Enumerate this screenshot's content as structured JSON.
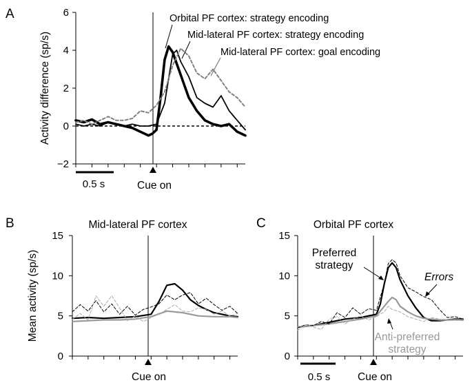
{
  "chart_data": [
    {
      "panel_label": "A",
      "type": "line",
      "ylabel": "Activity difference (sp/s)",
      "ylim": [
        -2,
        6
      ],
      "yticks": [
        "−2",
        "0",
        "2",
        "4",
        "6"
      ],
      "xlim": [
        -1.0,
        1.1
      ],
      "cue_label": "Cue on",
      "scalebar_label": "0.5 s",
      "series": [
        {
          "name": "Orbital PF cortex: strategy encoding",
          "color": "#000000",
          "x": [
            -1.0,
            -0.9,
            -0.8,
            -0.7,
            -0.6,
            -0.5,
            -0.4,
            -0.3,
            -0.2,
            -0.1,
            -0.05,
            0.0,
            0.05,
            0.1,
            0.15,
            0.2,
            0.25,
            0.3,
            0.35,
            0.4,
            0.5,
            0.6,
            0.7,
            0.8,
            0.9,
            1.0,
            1.1
          ],
          "values": [
            0.3,
            0.2,
            0.35,
            0.1,
            0.2,
            0.1,
            0.0,
            -0.1,
            -0.3,
            -0.5,
            -0.4,
            -0.2,
            1.5,
            3.5,
            4.2,
            3.9,
            3.3,
            2.7,
            2.1,
            1.5,
            0.8,
            0.3,
            0.1,
            0.0,
            0.1,
            -0.3,
            -0.5
          ]
        },
        {
          "name": "Mid-lateral PF cortex: strategy encoding",
          "color": "#000000",
          "x": [
            -1.0,
            -0.9,
            -0.8,
            -0.7,
            -0.6,
            -0.5,
            -0.4,
            -0.3,
            -0.2,
            -0.1,
            0.0,
            0.1,
            0.15,
            0.2,
            0.25,
            0.3,
            0.4,
            0.5,
            0.6,
            0.7,
            0.8,
            0.9,
            1.0,
            1.1
          ],
          "values": [
            0.1,
            0.0,
            0.1,
            0.0,
            0.2,
            0.1,
            0.0,
            0.1,
            0.0,
            0.0,
            0.1,
            1.2,
            2.5,
            3.8,
            4.0,
            3.4,
            2.6,
            1.5,
            1.2,
            1.0,
            1.6,
            0.8,
            0.3,
            -0.2
          ]
        },
        {
          "name": "Mid-lateral PF cortex: goal encoding",
          "color": "#808080",
          "x": [
            -1.0,
            -0.9,
            -0.8,
            -0.7,
            -0.6,
            -0.5,
            -0.4,
            -0.3,
            -0.2,
            -0.1,
            0.0,
            0.1,
            0.2,
            0.3,
            0.4,
            0.5,
            0.6,
            0.7,
            0.8,
            0.9,
            1.0,
            1.1
          ],
          "values": [
            0.2,
            0.3,
            0.1,
            0.3,
            0.5,
            0.3,
            0.3,
            0.4,
            0.8,
            0.7,
            1.1,
            1.8,
            3.2,
            4.1,
            3.7,
            2.8,
            2.5,
            3.0,
            2.4,
            1.8,
            1.5,
            1.0
          ]
        }
      ]
    },
    {
      "panel_label": "B",
      "type": "line",
      "title": "Mid-lateral PF cortex",
      "ylabel": "Mean activity (sp/s)",
      "ylim": [
        0,
        15
      ],
      "yticks": [
        "0",
        "5",
        "10",
        "15"
      ],
      "xlim": [
        -1.0,
        1.1
      ],
      "cue_label": "Cue on",
      "series": [
        {
          "color": "#000000",
          "width": 2.2,
          "x": [
            -1.0,
            -0.8,
            -0.6,
            -0.4,
            -0.2,
            0.0,
            0.1,
            0.2,
            0.3,
            0.4,
            0.5,
            0.6,
            0.7,
            0.8,
            0.9,
            1.0,
            1.1
          ],
          "values": [
            4.7,
            4.8,
            4.7,
            4.8,
            4.9,
            5.2,
            6.8,
            8.8,
            9.0,
            8.2,
            7.0,
            6.3,
            5.8,
            5.4,
            5.2,
            5.0,
            4.9
          ]
        },
        {
          "color": "#999999",
          "width": 2.2,
          "x": [
            -1.0,
            -0.8,
            -0.6,
            -0.4,
            -0.2,
            0.0,
            0.2,
            0.4,
            0.6,
            0.8,
            1.0,
            1.1
          ],
          "values": [
            4.3,
            4.4,
            4.5,
            4.5,
            4.6,
            4.9,
            5.6,
            5.4,
            5.0,
            4.9,
            4.9,
            4.8
          ]
        },
        {
          "color": "#000000",
          "width": 1,
          "dashed": true,
          "x": [
            -1.0,
            -0.9,
            -0.8,
            -0.7,
            -0.6,
            -0.5,
            -0.4,
            -0.3,
            -0.2,
            -0.1,
            0.0,
            0.1,
            0.2,
            0.3,
            0.4,
            0.5,
            0.6,
            0.7,
            0.8,
            0.9,
            1.0,
            1.1
          ],
          "values": [
            5.5,
            6.4,
            5.6,
            6.9,
            5.5,
            6.5,
            5.2,
            6.2,
            5.1,
            5.8,
            6.1,
            6.5,
            7.6,
            7.0,
            7.6,
            7.9,
            6.5,
            7.2,
            6.4,
            5.7,
            6.2,
            5.3
          ]
        },
        {
          "color": "#aaaaaa",
          "width": 1,
          "dashed": true,
          "x": [
            -1.0,
            -0.9,
            -0.8,
            -0.7,
            -0.6,
            -0.5,
            -0.4,
            -0.3,
            -0.2,
            -0.1,
            0.0,
            0.1,
            0.2,
            0.3,
            0.4,
            0.5,
            0.6,
            0.7,
            0.8,
            0.9,
            1.0,
            1.1
          ],
          "values": [
            4.6,
            5.3,
            4.5,
            7.5,
            6.2,
            7.5,
            6.0,
            4.4,
            5.0,
            4.3,
            4.8,
            5.2,
            5.8,
            6.4,
            5.6,
            5.5,
            6.0,
            5.8,
            5.2,
            5.6,
            5.0,
            5.3
          ]
        }
      ]
    },
    {
      "panel_label": "C",
      "type": "line",
      "title": "Orbital PF cortex",
      "ylim": [
        0,
        15
      ],
      "yticks": [
        "0",
        "5",
        "10",
        "15"
      ],
      "xlim": [
        -1.0,
        1.1
      ],
      "cue_label": "Cue on",
      "scalebar_label": "0.5 s",
      "annotations": {
        "preferred": [
          "Preferred",
          "strategy"
        ],
        "errors": "Errors",
        "antipreferred": [
          "Anti-preferred",
          "strategy"
        ]
      },
      "series": [
        {
          "color": "#000000",
          "width": 2.2,
          "x": [
            -1.0,
            -0.8,
            -0.6,
            -0.4,
            -0.2,
            0.0,
            0.05,
            0.1,
            0.15,
            0.2,
            0.25,
            0.3,
            0.4,
            0.5,
            0.6,
            0.7,
            0.8,
            0.9,
            1.0,
            1.1
          ],
          "values": [
            3.6,
            3.8,
            4.2,
            4.6,
            4.8,
            5.2,
            6.5,
            9.0,
            11.0,
            11.6,
            11.0,
            9.5,
            7.5,
            6.0,
            4.8,
            4.4,
            4.4,
            4.5,
            4.6,
            4.6
          ]
        },
        {
          "color": "#999999",
          "width": 2.2,
          "x": [
            -1.0,
            -0.8,
            -0.6,
            -0.4,
            -0.2,
            0.0,
            0.1,
            0.15,
            0.2,
            0.25,
            0.3,
            0.4,
            0.5,
            0.6,
            0.8,
            1.0,
            1.1
          ],
          "values": [
            3.6,
            3.8,
            4.0,
            4.3,
            4.6,
            5.0,
            6.2,
            6.8,
            7.3,
            7.0,
            6.2,
            5.5,
            5.0,
            4.7,
            4.5,
            4.5,
            4.5
          ]
        },
        {
          "color": "#000000",
          "width": 1,
          "dashed": true,
          "x": [
            -1.0,
            -0.9,
            -0.8,
            -0.7,
            -0.6,
            -0.5,
            -0.4,
            -0.3,
            -0.2,
            -0.1,
            0.0,
            0.1,
            0.15,
            0.2,
            0.25,
            0.3,
            0.4,
            0.5,
            0.6,
            0.7,
            0.8,
            0.9,
            1.0,
            1.1
          ],
          "values": [
            3.5,
            3.9,
            3.8,
            4.3,
            4.0,
            5.4,
            4.8,
            6.0,
            5.2,
            5.9,
            5.7,
            9.0,
            11.5,
            12.0,
            11.6,
            10.0,
            8.5,
            8.0,
            7.4,
            7.0,
            5.8,
            4.8,
            4.9,
            4.6
          ]
        },
        {
          "color": "#aaaaaa",
          "width": 1,
          "dashed": true,
          "x": [
            -1.0,
            -0.9,
            -0.8,
            -0.7,
            -0.6,
            -0.5,
            -0.4,
            -0.3,
            -0.2,
            -0.1,
            0.0,
            0.1,
            0.15,
            0.2,
            0.3,
            0.4,
            0.5,
            0.6,
            0.7,
            0.8,
            0.9,
            1.0,
            1.1
          ],
          "values": [
            3.2,
            3.9,
            3.6,
            3.3,
            4.6,
            4.9,
            4.0,
            4.6,
            5.0,
            4.5,
            4.9,
            5.5,
            6.2,
            5.8,
            5.5,
            4.9,
            4.6,
            4.3,
            4.8,
            4.6,
            4.4,
            4.5,
            4.4
          ]
        }
      ]
    }
  ]
}
